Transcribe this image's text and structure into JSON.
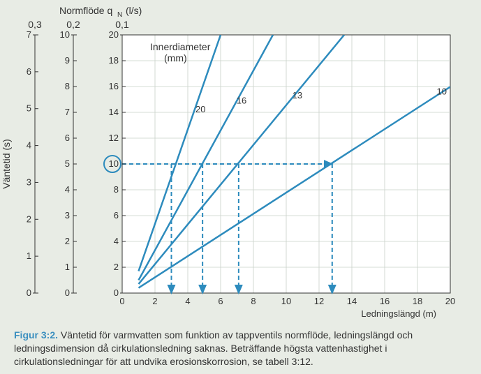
{
  "top_label": "Normflöde q_N (l/s)",
  "flow_scales": [
    {
      "value": 0.3,
      "ticks": [
        0,
        1,
        2,
        3,
        4,
        5,
        6,
        7
      ],
      "label": "0,3"
    },
    {
      "value": 0.2,
      "ticks": [
        0,
        1,
        2,
        3,
        4,
        5,
        6,
        7,
        8,
        9,
        10
      ],
      "label": "0,2"
    },
    {
      "value": 0.1,
      "ticks": [
        0,
        2,
        4,
        6,
        8,
        10,
        12,
        14,
        16,
        18,
        20
      ],
      "label": "0,1"
    }
  ],
  "y_axis_label": "Väntetid (s)",
  "x_axis_label": "Ledningslängd (m)",
  "chart": {
    "type": "line",
    "inner_label_title": "Innerdiameter",
    "inner_label_unit": "(mm)",
    "xlim": [
      0,
      20
    ],
    "ylim": [
      0,
      20
    ],
    "xtick_step": 2,
    "ytick_step": 2,
    "background_color": "#ffffff",
    "grid_color": "#c8d0c8",
    "line_color": "#2d8bbd",
    "line_width": 2.5,
    "dash_color": "#2d8bbd",
    "dash_pattern": "6,4",
    "circle_value": 10,
    "series": [
      {
        "label": "20",
        "x0": 1.0,
        "y0": 1.7,
        "slope": 3.66,
        "label_x": 4.3
      },
      {
        "label": "16",
        "x0": 1.0,
        "y0": 1.0,
        "slope": 2.32,
        "label_x": 6.8
      },
      {
        "label": "13",
        "x0": 1.0,
        "y0": 0.7,
        "slope": 1.54,
        "label_x": 10.2
      },
      {
        "label": "10",
        "x0": 1.0,
        "y0": 0.4,
        "slope": 0.82,
        "label_x": 19.0
      }
    ],
    "guide_y": 10,
    "guide_drop_x": [
      3.0,
      4.9,
      7.1,
      12.8
    ]
  },
  "caption_fig": "Figur 3:2.",
  "caption_text": "Väntetid för varmvatten som funktion av tappventils normflöde, ledningslängd och ledningsdimension då cirkulationsledning saknas. Beträffande högsta vattenhastighet i cirkulationsledningar för att undvika erosionskorrosion, se tabell 3:12."
}
